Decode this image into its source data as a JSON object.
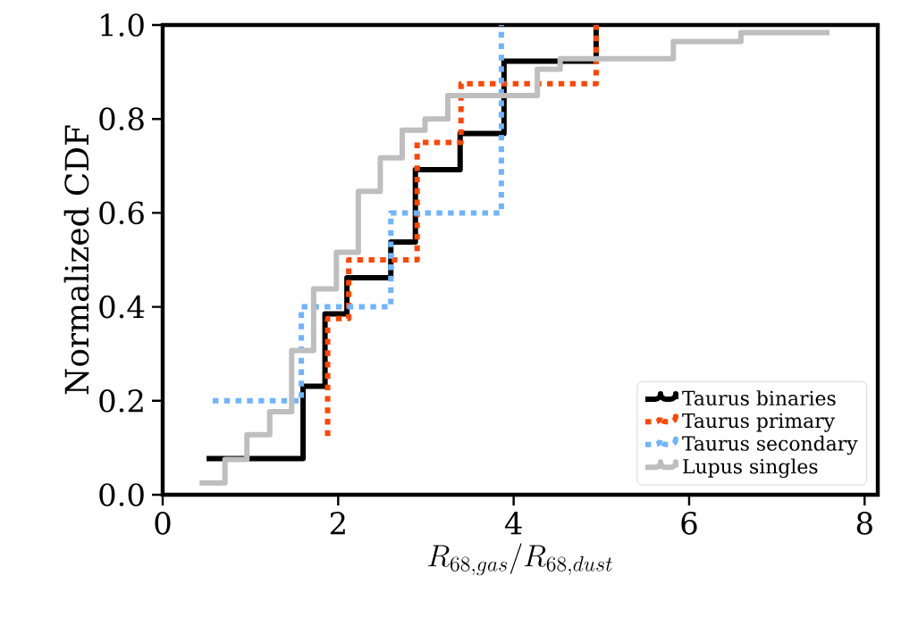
{
  "chart_data": {
    "type": "step",
    "xlabel": "R_{68,gas}/R_{68,dust}",
    "ylabel": "Normalized CDF",
    "xlim": [
      0,
      8.15
    ],
    "ylim": [
      0,
      1
    ],
    "xticks": [
      0,
      2,
      4,
      6,
      8
    ],
    "yticks": [
      {
        "value": 0,
        "label": "0.0"
      },
      0.2,
      0.4,
      0.6,
      0.8,
      {
        "value": 1,
        "label": "1.0"
      }
    ],
    "legend": "bottom right",
    "series": [
      {
        "name": "Taurus binaries",
        "color": "#000000",
        "line_style": "solid",
        "x": [
          0.5,
          1.6,
          1.85,
          2.1,
          2.6,
          2.88,
          3.39,
          3.89,
          4.94
        ],
        "values": [
          0.077,
          0.231,
          0.385,
          0.462,
          0.538,
          0.692,
          0.769,
          0.923,
          1.0
        ]
      },
      {
        "name": "Taurus primary",
        "color": "#ff4500",
        "line_style": "dotted",
        "x": [
          1.88,
          1.88,
          2.12,
          2.9,
          3.4,
          4.94
        ],
        "values": [
          0.125,
          0.375,
          0.5,
          0.75,
          0.875,
          1.0
        ]
      },
      {
        "name": "Taurus secondary",
        "color": "#6fb4ff",
        "line_style": "dotted",
        "x": [
          0.57,
          1.58,
          2.6,
          3.86
        ],
        "values": [
          0.2,
          0.4,
          0.6,
          1.0
        ]
      },
      {
        "name": "Lupus singles",
        "color": "#bebebe",
        "line_style": "solid",
        "x": [
          0.42,
          0.71,
          0.96,
          1.22,
          1.47,
          1.72,
          1.98,
          2.23,
          2.48,
          2.73,
          2.99,
          3.25,
          4.27,
          4.53,
          5.82,
          6.59,
          7.6
        ],
        "values": [
          0.025,
          0.075,
          0.128,
          0.177,
          0.307,
          0.438,
          0.516,
          0.646,
          0.717,
          0.776,
          0.8,
          0.85,
          0.906,
          0.928,
          0.965,
          0.984,
          0.984
        ]
      }
    ]
  }
}
